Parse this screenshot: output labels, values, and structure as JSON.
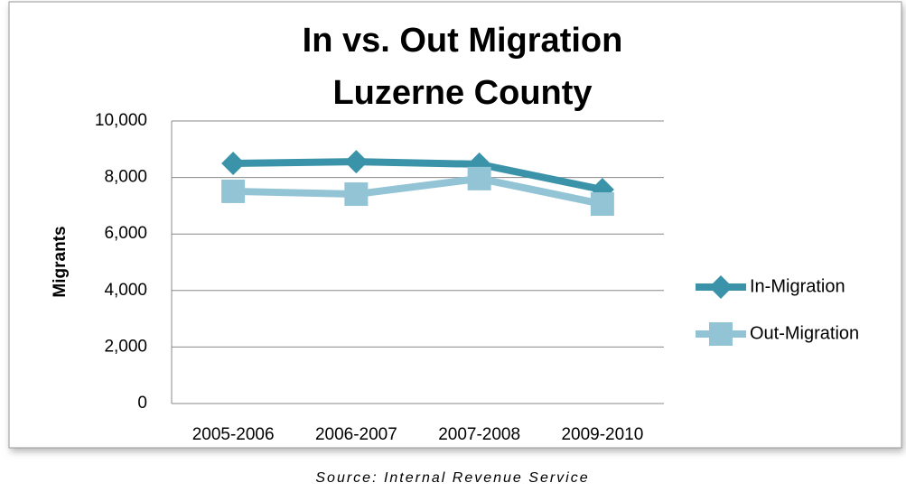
{
  "chart_data": {
    "type": "line",
    "title": "In vs. Out Migration",
    "subtitle": "Luzerne County",
    "y_label": "Migrants",
    "source": "Source: Internal Revenue Service",
    "categories": [
      "2005-2006",
      "2006-2007",
      "2007-2008",
      "2009-2010"
    ],
    "series": [
      {
        "name": "In-Migration",
        "color": "#3a93a8",
        "marker": "diamond",
        "values": [
          8500,
          8560,
          8470,
          7570
        ]
      },
      {
        "name": "Out-Migration",
        "color": "#93c4d6",
        "marker": "square",
        "values": [
          7510,
          7410,
          7960,
          7060
        ]
      }
    ],
    "ylim": [
      0,
      10000
    ],
    "yticks": [
      {
        "value": 0,
        "label": "0"
      },
      {
        "value": 2000,
        "label": "2,000"
      },
      {
        "value": 4000,
        "label": "4,000"
      },
      {
        "value": 6000,
        "label": "6,000"
      },
      {
        "value": 8000,
        "label": "8,000"
      },
      {
        "value": 10000,
        "label": "10,000"
      }
    ],
    "grid": true,
    "legend": "right"
  }
}
